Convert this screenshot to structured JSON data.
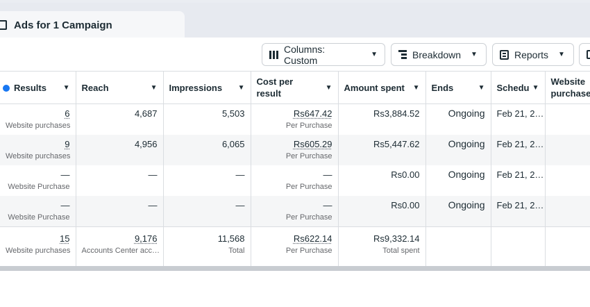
{
  "tab": {
    "title": "Ads for 1 Campaign"
  },
  "toolbar": {
    "columns_label": "Columns: Custom",
    "breakdown_label": "Breakdown",
    "reports_label": "Reports"
  },
  "headers": {
    "results": "Results",
    "reach": "Reach",
    "impressions": "Impressions",
    "cost_per_result": "Cost per result",
    "amount_spent": "Amount spent",
    "ends": "Ends",
    "schedule": "Schedu",
    "website_purchases": "Website purchase"
  },
  "rows": [
    {
      "results": "6",
      "results_sub": "Website purchases",
      "reach": "4,687",
      "impressions": "5,503",
      "cost": "Rs647.42",
      "cost_sub": "Per Purchase",
      "spent": "Rs3,884.52",
      "ends": "Ongoing",
      "schedule": "Feb 21, 2…"
    },
    {
      "results": "9",
      "results_sub": "Website purchases",
      "reach": "4,956",
      "impressions": "6,065",
      "cost": "Rs605.29",
      "cost_sub": "Per Purchase",
      "spent": "Rs5,447.62",
      "ends": "Ongoing",
      "schedule": "Feb 21, 2…"
    },
    {
      "results": "—",
      "results_sub": "Website Purchase",
      "reach": "—",
      "impressions": "—",
      "cost": "—",
      "cost_sub": "Per Purchase",
      "spent": "Rs0.00",
      "ends": "Ongoing",
      "schedule": "Feb 21, 2…"
    },
    {
      "results": "—",
      "results_sub": "Website Purchase",
      "reach": "—",
      "impressions": "—",
      "cost": "—",
      "cost_sub": "Per Purchase",
      "spent": "Rs0.00",
      "ends": "Ongoing",
      "schedule": "Feb 21, 2…"
    }
  ],
  "totals": {
    "results": "15",
    "results_sub": "Website purchases",
    "reach": "9,176",
    "reach_sub": "Accounts Center acc…",
    "impressions": "11,568",
    "impressions_sub": "Total",
    "cost": "Rs622.14",
    "cost_sub": "Per Purchase",
    "spent": "Rs9,332.14",
    "spent_sub": "Total spent"
  }
}
